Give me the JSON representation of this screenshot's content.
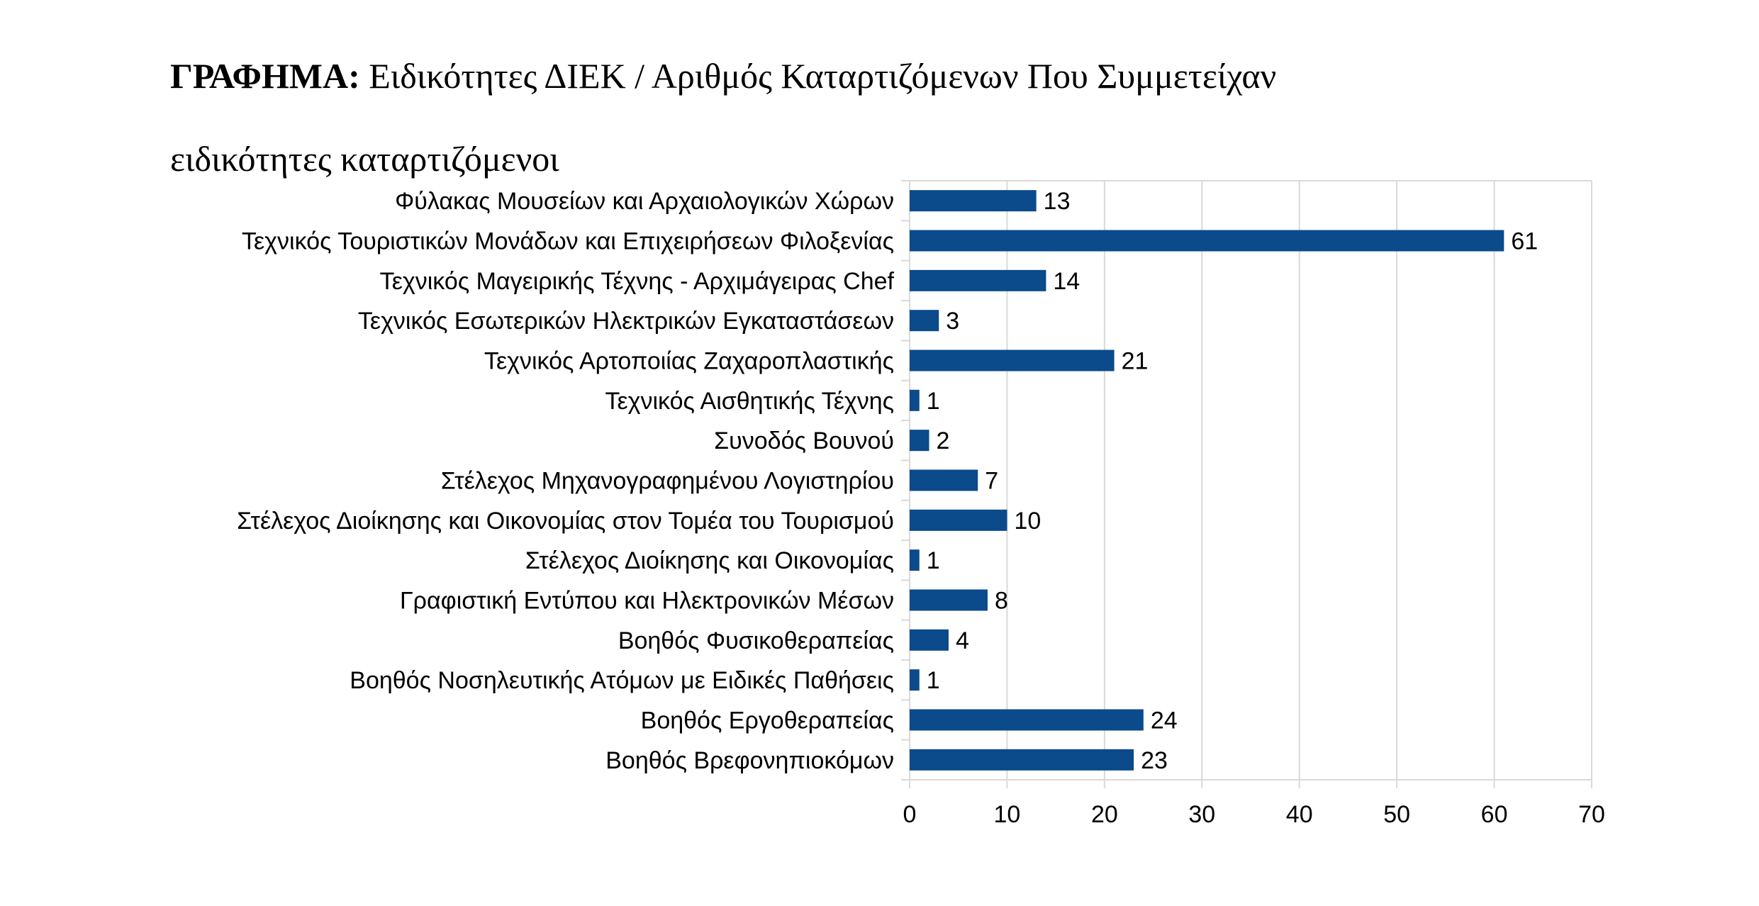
{
  "title": {
    "prefix": "ΓΡΑΦΗΜΑ:",
    "text": " Ειδικότητες ΔΙΕΚ / Αριθμός Καταρτιζόμενων Που Συμμετείχαν"
  },
  "heading": "ειδικότητες καταρτιζόμενοι",
  "colors": {
    "bar": "#0b4a8b",
    "grid": "#d9d9d9"
  },
  "chart_data": {
    "type": "bar",
    "orientation": "horizontal",
    "categories": [
      "Φύλακας Μουσείων και Αρχαιολογικών Χώρων",
      "Τεχνικός Τουριστικών Μονάδων και Επιχειρήσεων Φιλοξενίας",
      "Τεχνικός Μαγειρικής Τέχνης - Αρχιμάγειρας Chef",
      "Τεχνικός Εσωτερικών Ηλεκτρικών Εγκαταστάσεων",
      "Τεχνικός Αρτοποιίας Ζαχαροπλαστικής",
      "Τεχνικός Αισθητικής Τέχνης",
      "Συνοδός Βουνού",
      "Στέλεχος Μηχανογραφημένου Λογιστηρίου",
      "Στέλεχος Διοίκησης και Οικονομίας στον Τομέα του Τουρισμού",
      "Στέλεχος Διοίκησης και Οικονομίας",
      "Γραφιστική Εντύπου και Ηλεκτρονικών Μέσων",
      "Βοηθός Φυσικοθεραπείας",
      "Βοηθός Νοσηλευτικής Ατόμων με Ειδικές Παθήσεις",
      "Βοηθός Εργοθεραπείας",
      "Βοηθός Βρεφονηπιοκόμων"
    ],
    "values": [
      13,
      61,
      14,
      3,
      21,
      1,
      2,
      7,
      10,
      1,
      8,
      4,
      1,
      24,
      23
    ],
    "xlim": [
      0,
      70
    ],
    "xticks": [
      0,
      10,
      20,
      30,
      40,
      50,
      60,
      70
    ],
    "grid": true,
    "legend": "none",
    "data_labels": true
  }
}
